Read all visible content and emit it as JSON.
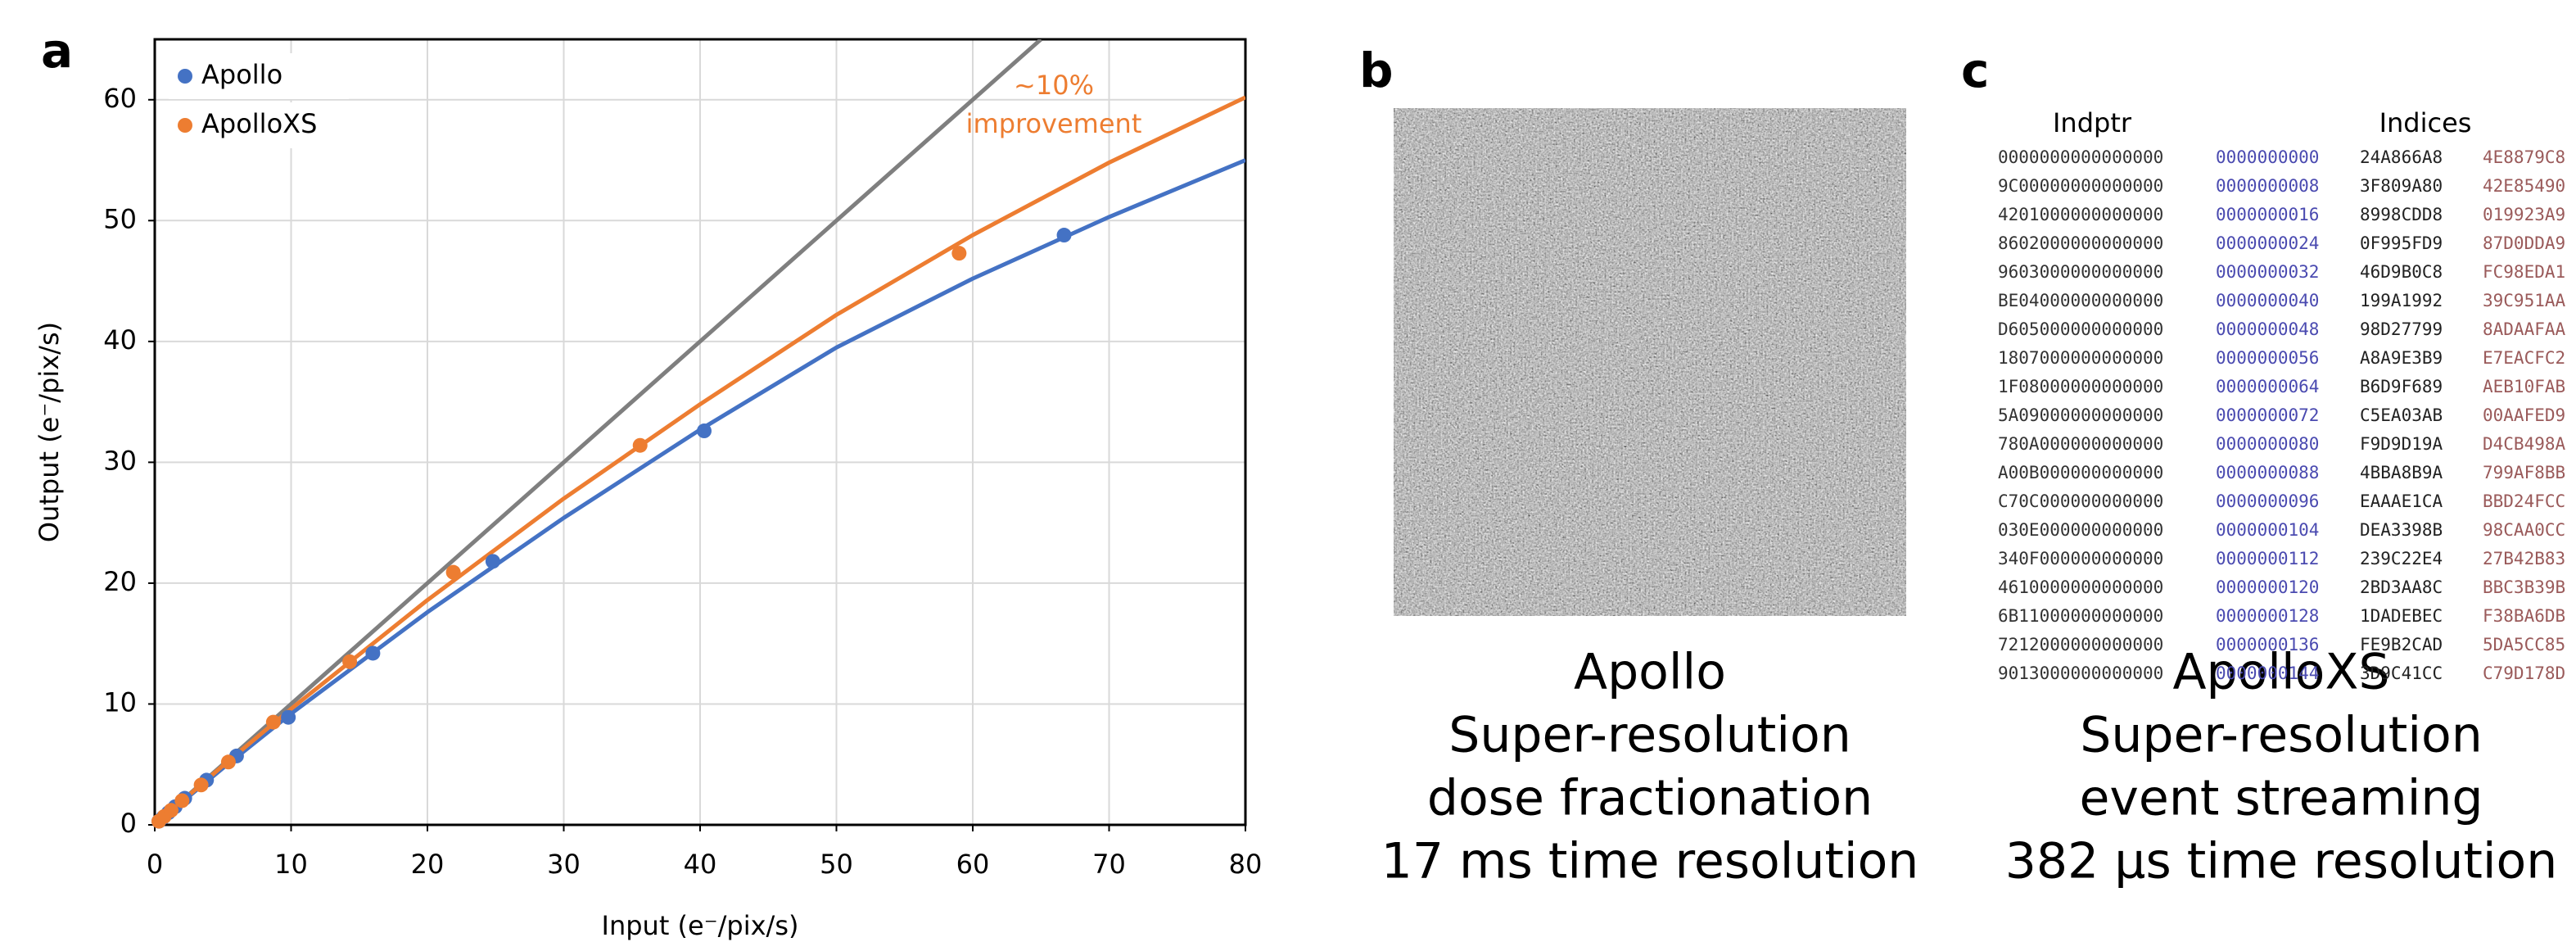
{
  "chart_data": {
    "type": "scatter",
    "xlabel": "Input (e⁻/pix/s)",
    "ylabel": "Output (e⁻/pix/s)",
    "xlim": [
      0,
      80
    ],
    "ylim": [
      0,
      65
    ],
    "xticks": [
      0,
      10,
      20,
      30,
      40,
      50,
      60,
      70,
      80
    ],
    "yticks": [
      0,
      10,
      20,
      30,
      40,
      50,
      60
    ],
    "grid": true,
    "legend": "upper left",
    "annotation": [
      "~10%",
      "improvement"
    ],
    "annotation_color": "#ed7d31",
    "series": [
      {
        "name": "Apollo",
        "color": "#4472c4",
        "x": [
          0.3,
          0.6,
          1.0,
          1.5,
          2.2,
          3.8,
          6.0,
          9.8,
          16.0,
          24.8,
          40.3,
          66.7
        ],
        "values": [
          0.3,
          0.6,
          1.0,
          1.5,
          2.2,
          3.7,
          5.7,
          8.9,
          14.2,
          21.8,
          32.6,
          48.8
        ]
      },
      {
        "name": "ApolloXS",
        "color": "#ed7d31",
        "x": [
          0.3,
          0.7,
          1.2,
          2.0,
          3.4,
          5.4,
          8.7,
          14.3,
          21.9,
          35.6,
          59.0
        ],
        "values": [
          0.3,
          0.7,
          1.2,
          2.0,
          3.3,
          5.2,
          8.5,
          13.5,
          20.9,
          31.4,
          47.3
        ]
      }
    ],
    "fits": [
      {
        "color": "#7f7f7f",
        "x": [
          0,
          65
        ],
        "values": [
          0,
          65
        ]
      },
      {
        "color": "#4472c4",
        "x": [
          0,
          5,
          10,
          20,
          30,
          40,
          50,
          60,
          70,
          80
        ],
        "values": [
          0,
          4.7,
          9.2,
          17.6,
          25.4,
          32.7,
          39.5,
          45.2,
          50.3,
          55
        ]
      },
      {
        "color": "#ed7d31",
        "x": [
          0,
          5,
          10,
          20,
          30,
          40,
          50,
          60,
          70,
          80
        ],
        "values": [
          0,
          4.9,
          9.6,
          18.6,
          27.0,
          34.8,
          42.2,
          48.8,
          54.8,
          60.2
        ]
      }
    ]
  },
  "panel_labels": [
    "a",
    "b",
    "c"
  ],
  "panel_b": {
    "caption": [
      "Apollo",
      "Super-resolution",
      "dose fractionation",
      "17 ms time resolution"
    ]
  },
  "panel_c": {
    "headers": [
      "Indptr",
      "Indices"
    ],
    "rows": [
      [
        "0000000000000000",
        "0000000000",
        "24A866A8",
        "4E8879C8"
      ],
      [
        "9C00000000000000",
        "0000000008",
        "3F809A80",
        "42E85490"
      ],
      [
        "4201000000000000",
        "0000000016",
        "8998CDD8",
        "019923A9"
      ],
      [
        "8602000000000000",
        "0000000024",
        "0F995FD9",
        "87D0DDA9"
      ],
      [
        "9603000000000000",
        "0000000032",
        "46D9B0C8",
        "FC98EDA1"
      ],
      [
        "BE04000000000000",
        "0000000040",
        "199A1992",
        "39C951AA"
      ],
      [
        "D605000000000000",
        "0000000048",
        "98D27799",
        "8ADAAFAA"
      ],
      [
        "1807000000000000",
        "0000000056",
        "A8A9E3B9",
        "E7EACFC2"
      ],
      [
        "1F08000000000000",
        "0000000064",
        "B6D9F689",
        "AEB10FAB"
      ],
      [
        "5A09000000000000",
        "0000000072",
        "C5EA03AB",
        "00AAFED9"
      ],
      [
        "780A000000000000",
        "0000000080",
        "F9D9D19A",
        "D4CB498A"
      ],
      [
        "A00B000000000000",
        "0000000088",
        "4BBA8B9A",
        "799AF8BB"
      ],
      [
        "C70C000000000000",
        "0000000096",
        "EAAAE1CA",
        "BBD24FCC"
      ],
      [
        "030E000000000000",
        "0000000104",
        "DEA3398B",
        "98CAA0CC"
      ],
      [
        "340F000000000000",
        "0000000112",
        "239C22E4",
        "27B42B83"
      ],
      [
        "4610000000000000",
        "0000000120",
        "2BD3AA8C",
        "BBC3B39B"
      ],
      [
        "6B11000000000000",
        "0000000128",
        "1DADEBEC",
        "F38BA6DB"
      ],
      [
        "7212000000000000",
        "0000000136",
        "FE9B2CAD",
        "5DA5CC85"
      ],
      [
        "9013000000000000",
        "0000000144",
        "3D9C41CC",
        "C79D178D"
      ]
    ],
    "caption": [
      "ApolloXS",
      "Super-resolution",
      "event streaming",
      "382 µs time resolution"
    ]
  }
}
